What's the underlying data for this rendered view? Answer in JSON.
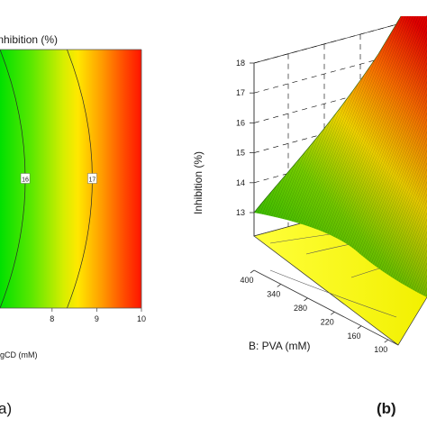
{
  "chart_data": [
    {
      "type": "heatmap",
      "subtype": "contour",
      "title": "Inhibition (%)",
      "xlabel": "gCD (mM)",
      "x_ticks": [
        "8",
        "9",
        "10"
      ],
      "contour_labels": [
        "16",
        "17"
      ],
      "contour_levels": [
        {
          "label": "16",
          "x": 7.4
        },
        {
          "label": "17",
          "x": 8.9
        }
      ],
      "colormap": [
        "#00dd00",
        "#ffee00",
        "#ff0000"
      ],
      "panel_label": "a)"
    },
    {
      "type": "surface",
      "zlabel": "Inhibition (%)",
      "ylabel": "B: PVA (mM)",
      "z_ticks": [
        "13",
        "14",
        "15",
        "16",
        "17",
        "18"
      ],
      "y_ticks": [
        "400",
        "340",
        "280",
        "220",
        "160",
        "100"
      ],
      "zlim": [
        13,
        18
      ],
      "ylim": [
        100,
        400
      ],
      "colormap": [
        "#00dd00",
        "#ffee00",
        "#ff0000"
      ],
      "panel_label": "(b)"
    }
  ]
}
